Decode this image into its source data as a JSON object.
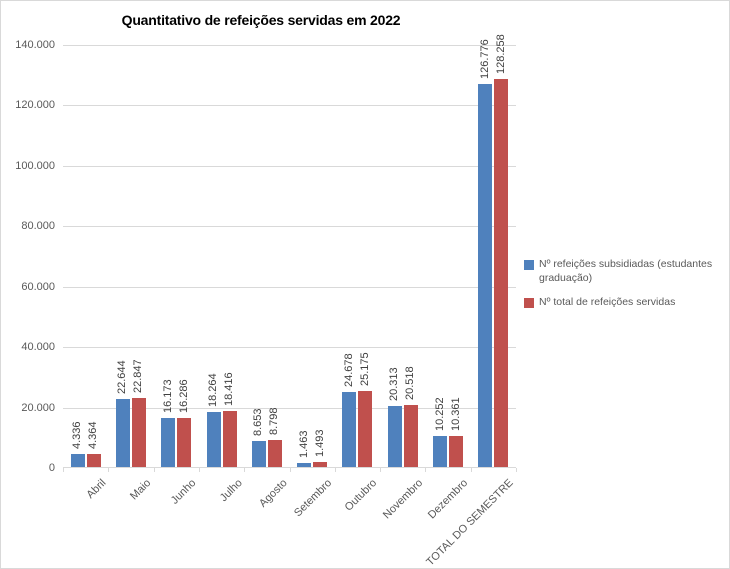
{
  "theme": {
    "background": "#FFFFFF",
    "border": "#D9D9D9",
    "grid": "#D9D9D9",
    "axis_text": "#595959",
    "label_text": "#404040",
    "title_text": "#000000",
    "series1_color": "#4F81BD",
    "series2_color": "#C0504D"
  },
  "chart_data": {
    "type": "bar",
    "title": "Quantitativo de refeições servidas em 2022",
    "categories": [
      "Abril",
      "Maio",
      "Junho",
      "Julho",
      "Agosto",
      "Setembro",
      "Outubro",
      "Novembro",
      "Dezembro",
      "TOTAL DO SEMESTRE"
    ],
    "series": [
      {
        "name": "Nº refeições subsidiadas (estudantes graduação)",
        "color": "#4F81BD",
        "values": [
          4336,
          22644,
          16173,
          18264,
          8653,
          1463,
          24678,
          20313,
          10252,
          126776
        ],
        "labels": [
          "4.336",
          "22.644",
          "16.173",
          "18.264",
          "8.653",
          "1.463",
          "24.678",
          "20.313",
          "10.252",
          "126.776"
        ]
      },
      {
        "name": "Nº total de refeições servidas",
        "color": "#C0504D",
        "values": [
          4364,
          22847,
          16286,
          18416,
          8798,
          1493,
          25175,
          20518,
          10361,
          128258
        ],
        "labels": [
          "4.364",
          "22.847",
          "16.286",
          "18.416",
          "8.798",
          "1.493",
          "25.175",
          "20.518",
          "10.361",
          "128.258"
        ]
      }
    ],
    "xlabel": "",
    "ylabel": "",
    "ylim": [
      0,
      140000
    ],
    "ytick_step": 20000,
    "ytick_labels": [
      "0",
      "20.000",
      "40.000",
      "60.000",
      "80.000",
      "100.000",
      "120.000",
      "140.000"
    ],
    "grid": true,
    "legend_position": "right",
    "data_label_rotation": 90,
    "category_label_rotation": 45
  }
}
